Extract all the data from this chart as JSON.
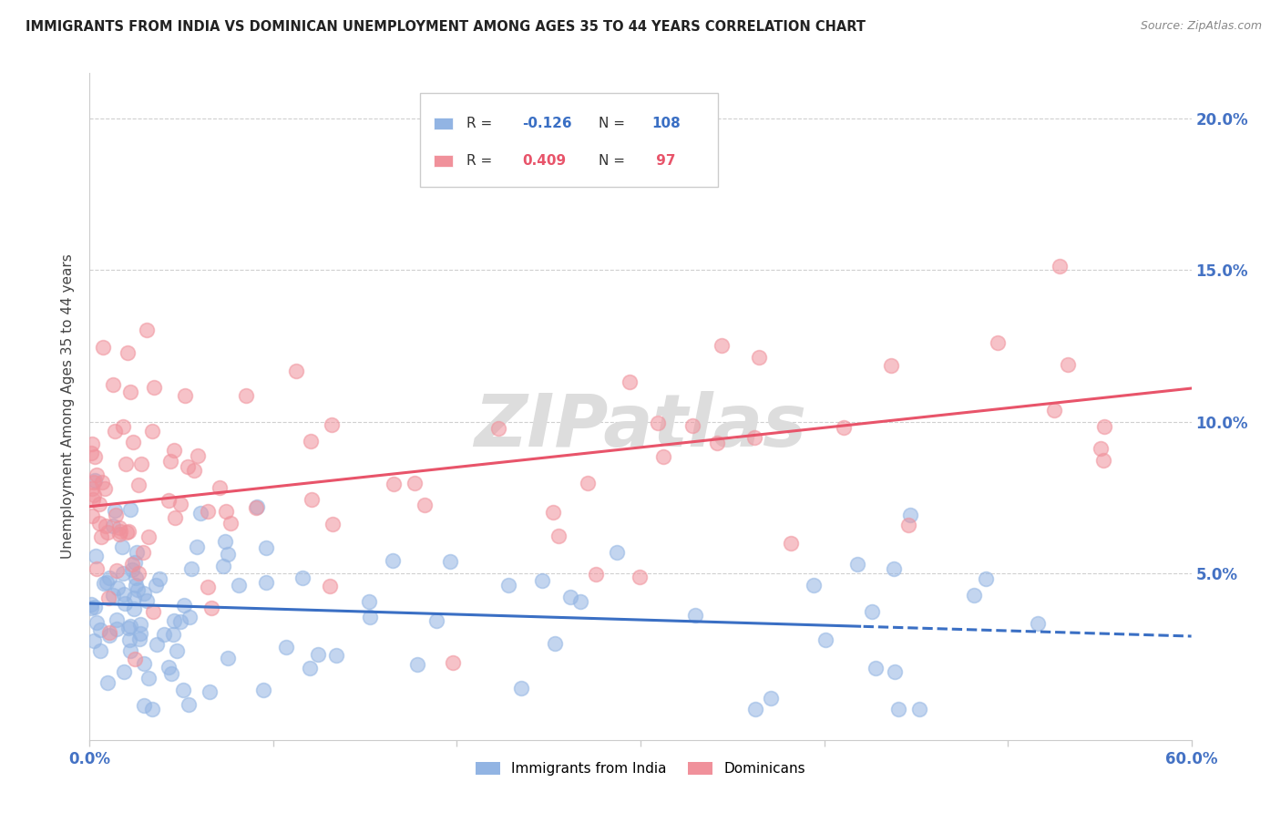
{
  "title": "IMMIGRANTS FROM INDIA VS DOMINICAN UNEMPLOYMENT AMONG AGES 35 TO 44 YEARS CORRELATION CHART",
  "source": "Source: ZipAtlas.com",
  "ylabel": "Unemployment Among Ages 35 to 44 years",
  "xlim": [
    0.0,
    0.6
  ],
  "ylim": [
    -0.005,
    0.215
  ],
  "yticks": [
    0.05,
    0.1,
    0.15,
    0.2
  ],
  "ytick_labels": [
    "5.0%",
    "10.0%",
    "15.0%",
    "20.0%"
  ],
  "xticks": [
    0.0,
    0.1,
    0.2,
    0.3,
    0.4,
    0.5,
    0.6
  ],
  "india_R": -0.126,
  "india_N": 108,
  "dominican_R": 0.409,
  "dominican_N": 97,
  "india_color": "#92b4e3",
  "dominican_color": "#f0919b",
  "india_line_color": "#3a6fc4",
  "dominican_line_color": "#e8546a",
  "india_line_dashed_after": 0.42,
  "watermark": "ZIPatlas",
  "india_line_intercept": 0.04,
  "india_line_slope": -0.018,
  "dom_line_intercept": 0.072,
  "dom_line_slope": 0.065
}
